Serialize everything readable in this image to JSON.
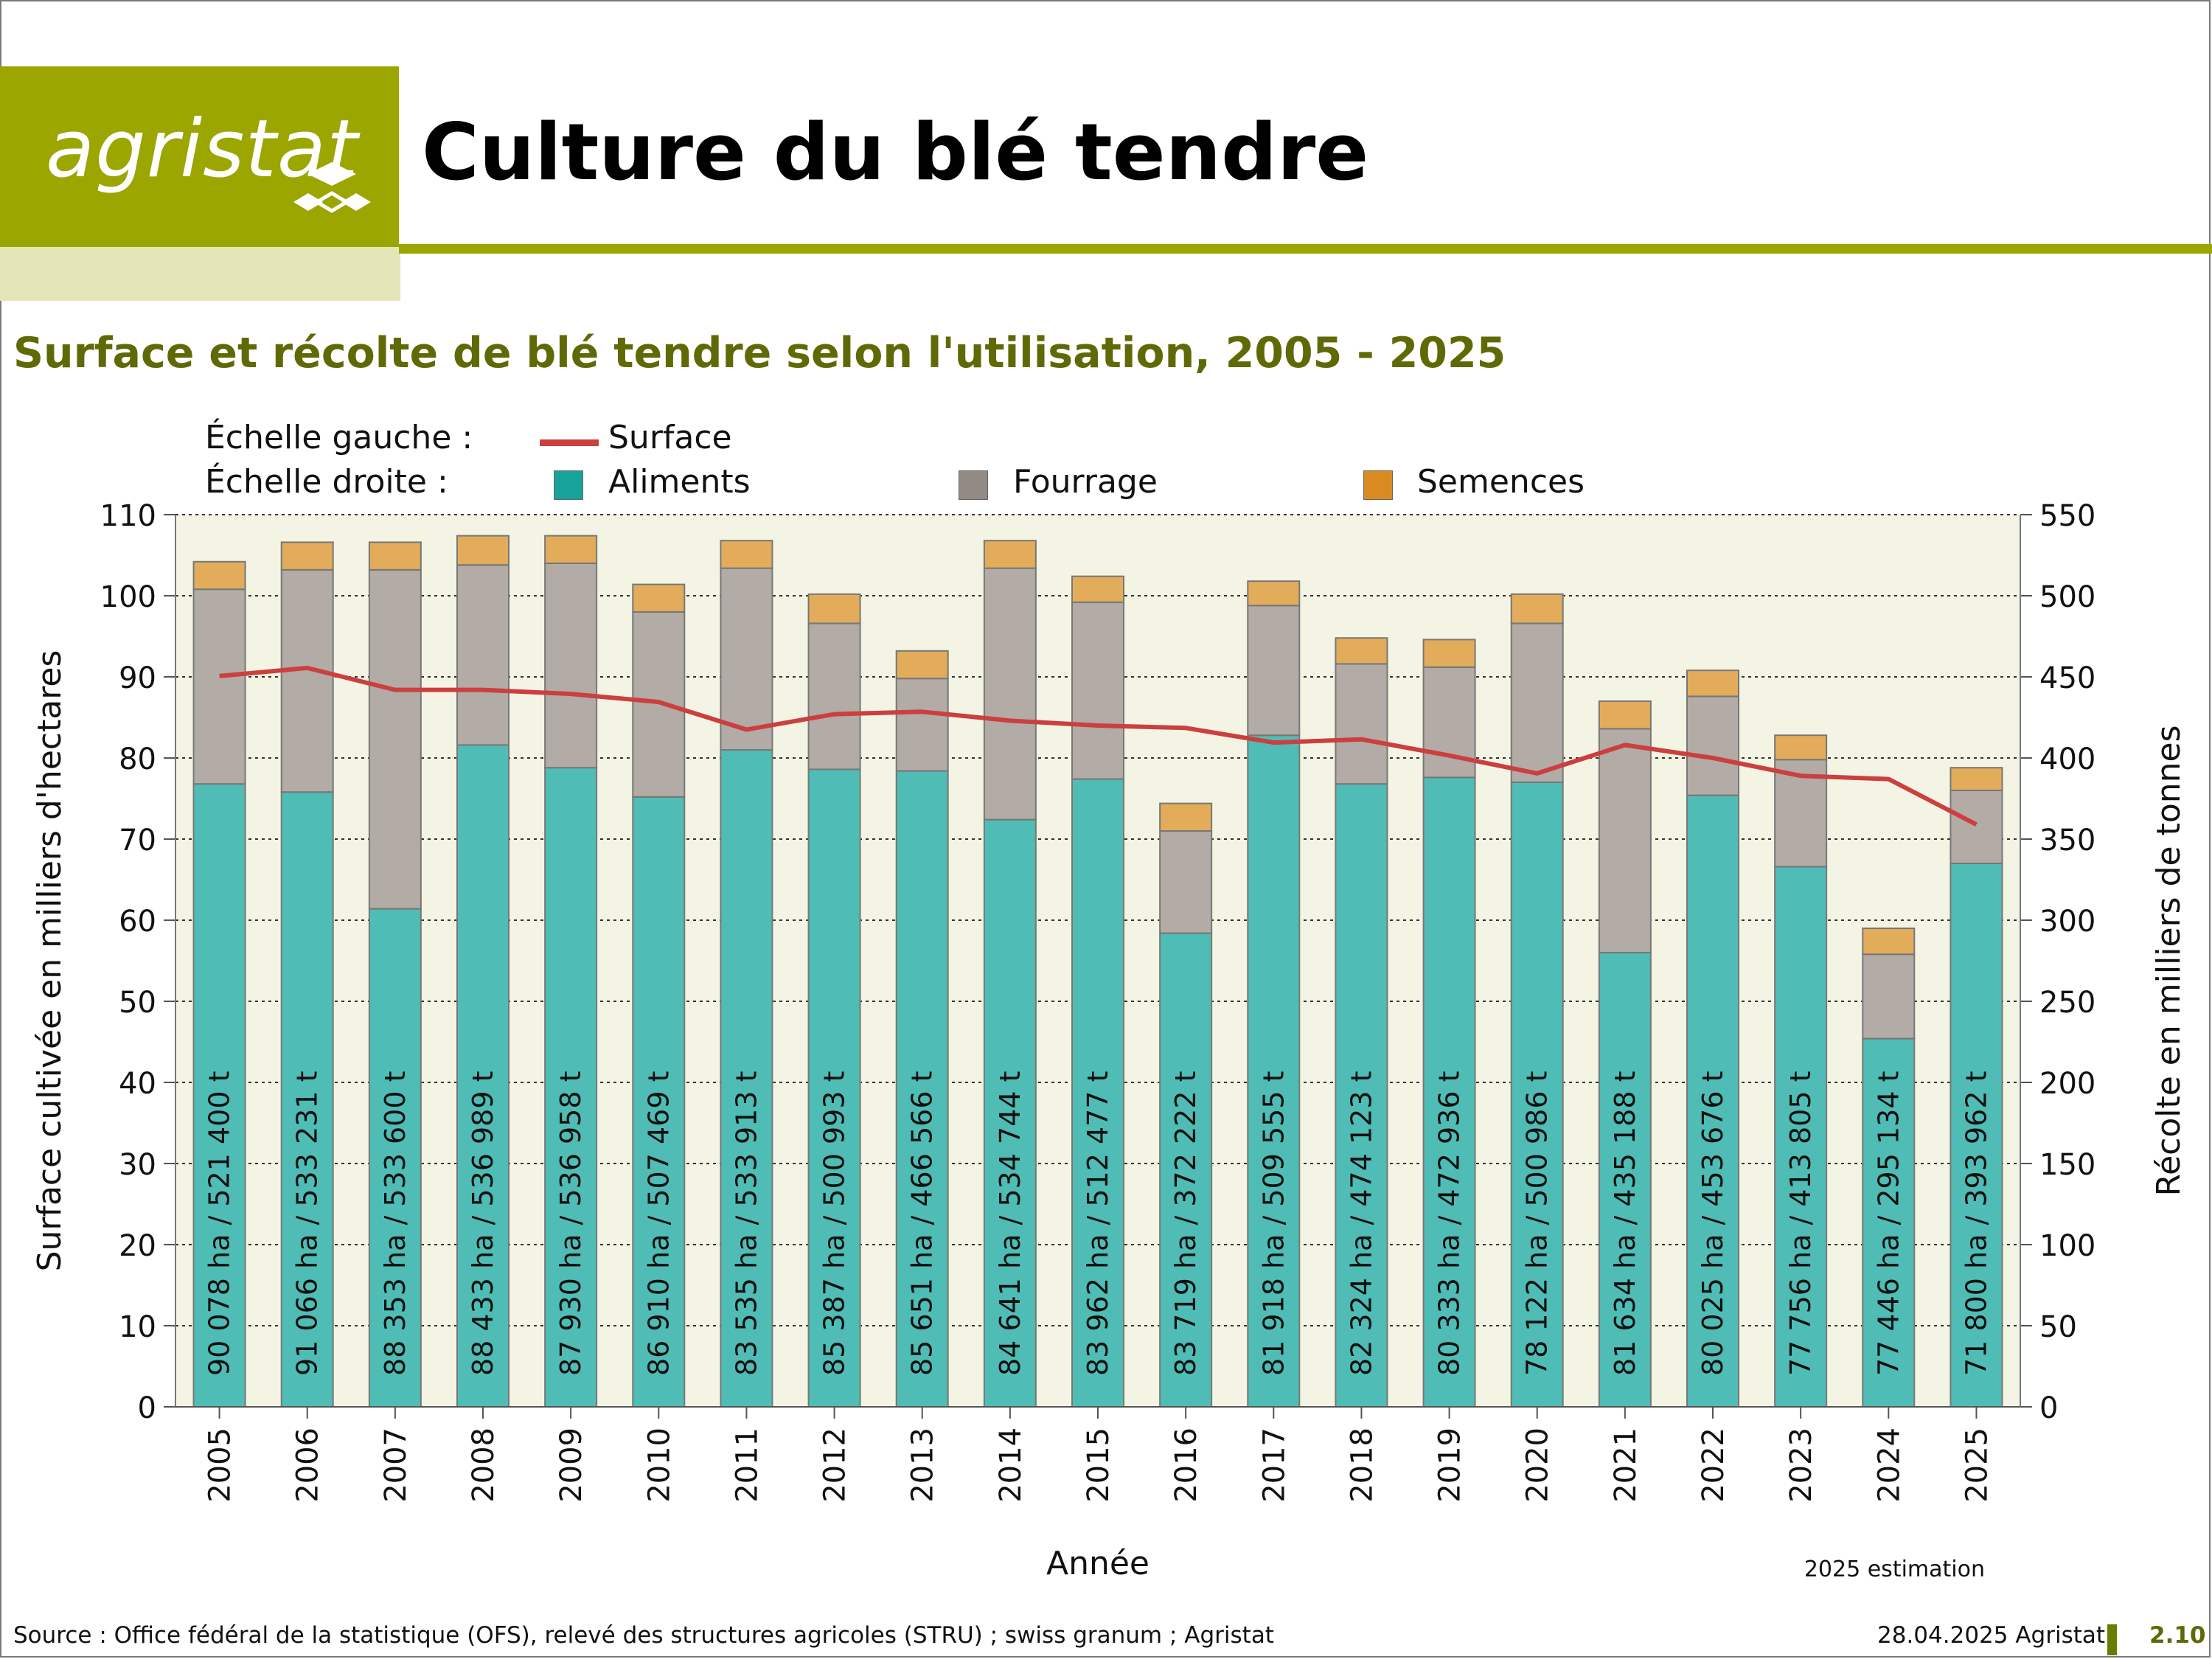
{
  "header": {
    "logo_text": "agristat",
    "title": "Culture du blé tendre",
    "subtitle": "Surface et récolte de blé tendre selon l'utilisation, 2005 - 2025"
  },
  "legend": {
    "left_scale_label": "Échelle gauche :",
    "right_scale_label": "Échelle droite :",
    "surface_label": "Surface",
    "aliments_label": "Aliments",
    "fourrage_label": "Fourrage",
    "semences_label": "Semences"
  },
  "footer": {
    "source": "Source : Office fédéral de la statistique (OFS), relevé des structures agricoles (STRU) ; swiss granum ; Agristat",
    "date": "28.04.2025 Agristat",
    "page": "2.10",
    "estimation_note": "2025 estimation"
  },
  "colors": {
    "aliments": "#4fbdb5",
    "fourrage": "#b2aba6",
    "semences": "#e3ac5a",
    "surface": "#cc3f3f",
    "plot_bg": "#f4f4e4",
    "brand": "#9ba600"
  },
  "chart_data": {
    "type": "bar",
    "xlabel": "Année",
    "ylabel_left": "Surface cultivée en milliers d'hectares",
    "ylabel_right": "Récolte en milliers de tonnes",
    "ylim_left": [
      0,
      110
    ],
    "ylim_right": [
      0,
      550
    ],
    "yticks_left": [
      0,
      10,
      20,
      30,
      40,
      50,
      60,
      70,
      80,
      90,
      100,
      110
    ],
    "yticks_right": [
      0,
      50,
      100,
      150,
      200,
      250,
      300,
      350,
      400,
      450,
      500,
      550
    ],
    "grid": "horizontal dotted",
    "categories": [
      "2005",
      "2006",
      "2007",
      "2008",
      "2009",
      "2010",
      "2011",
      "2012",
      "2013",
      "2014",
      "2015",
      "2016",
      "2017",
      "2018",
      "2019",
      "2020",
      "2021",
      "2022",
      "2023",
      "2024",
      "2025"
    ],
    "series": [
      {
        "name": "Aliments",
        "axis": "right",
        "stack": true,
        "values": [
          384,
          379,
          307,
          408,
          394,
          376,
          405,
          393,
          392,
          362,
          387,
          292,
          414,
          384,
          388,
          385,
          280,
          377,
          333,
          227,
          335
        ]
      },
      {
        "name": "Fourrage",
        "axis": "right",
        "stack": true,
        "values": [
          120,
          137,
          209,
          111,
          126,
          114,
          112,
          90,
          57,
          155,
          109,
          63,
          80,
          74,
          68,
          98,
          138,
          61,
          66,
          52,
          45
        ]
      },
      {
        "name": "Semences",
        "axis": "right",
        "stack": true,
        "values": [
          17,
          17,
          17,
          18,
          17,
          17,
          17,
          18,
          17,
          17,
          16,
          17,
          15,
          16,
          17,
          18,
          17,
          16,
          15,
          16,
          14
        ]
      },
      {
        "name": "Surface",
        "axis": "left",
        "type": "line",
        "values": [
          90.1,
          91.1,
          88.4,
          88.4,
          87.9,
          86.9,
          83.5,
          85.4,
          85.7,
          84.6,
          84.0,
          83.7,
          81.9,
          82.3,
          80.3,
          78.1,
          81.6,
          80.0,
          77.8,
          77.4,
          71.8
        ]
      }
    ],
    "bar_labels": [
      "90 078 ha / 521 400 t",
      "91 066 ha / 533 231 t",
      "88 353 ha / 533 600 t",
      "88 433 ha / 536 989 t",
      "87 930 ha / 536 958 t",
      "86 910 ha / 507 469 t",
      "83 535 ha / 533 913 t",
      "85 387 ha / 500 993 t",
      "85 651 ha / 466 566 t",
      "84 641 ha / 534 744 t",
      "83 962 ha / 512 477 t",
      "83 719 ha / 372 222 t",
      "81 918 ha / 509 555 t",
      "82 324 ha / 474 123 t",
      "80 333 ha / 472 936 t",
      "78 122 ha / 500 986 t",
      "81 634 ha / 435 188 t",
      "80 025 ha / 453 676 t",
      "77 756 ha / 413 805 t",
      "77 446 ha / 295 134 t",
      "71 800 ha / 393 962 t"
    ]
  }
}
